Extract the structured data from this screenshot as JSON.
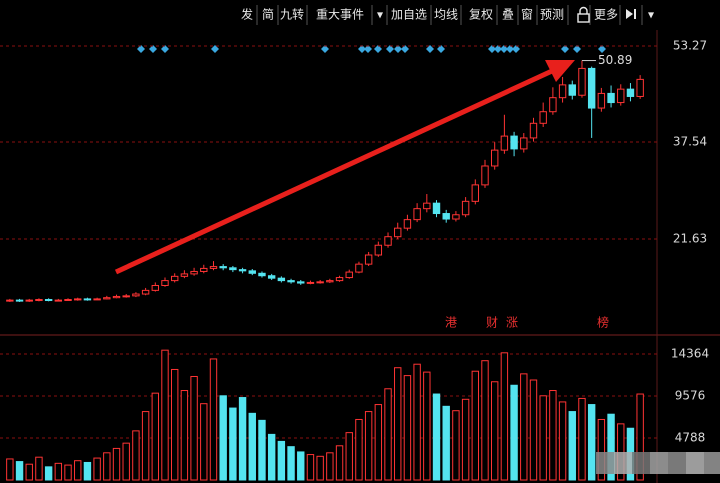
{
  "toolbar": [
    "发",
    "简",
    "九转",
    "重大事件",
    "▾",
    "加自选",
    "均线",
    "复权",
    "叠",
    "窗",
    "预测",
    "更多",
    "▾"
  ],
  "chart_data": [
    {
      "type": "candlestick",
      "open": [
        11.5,
        11.6,
        11.5,
        11.6,
        11.7,
        11.6,
        11.6,
        11.7,
        11.8,
        11.7,
        11.8,
        12.0,
        12.2,
        12.3,
        12.6,
        13.2,
        14.0,
        14.8,
        15.5,
        15.9,
        16.3,
        16.8,
        17.1,
        16.9,
        16.6,
        16.4,
        16.0,
        15.6,
        15.2,
        14.8,
        14.6,
        14.4,
        14.5,
        14.6,
        14.8,
        15.3,
        16.2,
        17.5,
        19.0,
        20.6,
        22.0,
        23.4,
        24.8,
        26.6,
        27.5,
        25.8,
        24.9,
        25.6,
        27.8,
        30.5,
        33.6,
        36.2,
        38.5,
        36.4,
        38.2,
        40.6,
        42.5,
        44.8,
        46.9,
        45.2,
        49.6,
        43.1,
        45.5,
        44.0,
        46.2,
        45.0
      ],
      "high": [
        11.8,
        11.8,
        11.8,
        11.9,
        11.9,
        11.8,
        11.9,
        12.0,
        12.0,
        12.0,
        12.3,
        12.5,
        12.6,
        12.9,
        13.6,
        14.5,
        15.3,
        16.0,
        16.5,
        16.9,
        17.4,
        18.0,
        17.5,
        17.2,
        16.9,
        16.7,
        16.3,
        15.9,
        15.5,
        15.1,
        14.9,
        14.8,
        14.9,
        15.1,
        15.6,
        16.6,
        17.9,
        19.5,
        21.2,
        22.7,
        24.3,
        25.6,
        27.5,
        29.0,
        28.0,
        26.4,
        26.2,
        28.5,
        31.4,
        34.6,
        37.5,
        42.0,
        39.2,
        39.0,
        41.5,
        44.0,
        46.5,
        48.2,
        47.6,
        50.89,
        49.9,
        46.4,
        46.8,
        47.0,
        47.2,
        48.5
      ],
      "low": [
        11.3,
        11.3,
        11.3,
        11.4,
        11.4,
        11.4,
        11.5,
        11.5,
        11.5,
        11.6,
        11.7,
        11.9,
        12.0,
        12.1,
        12.4,
        13.0,
        13.8,
        14.5,
        15.2,
        15.6,
        16.0,
        16.5,
        16.5,
        16.2,
        16.0,
        15.7,
        15.3,
        14.9,
        14.5,
        14.3,
        14.1,
        14.2,
        14.3,
        14.4,
        14.6,
        15.1,
        16.0,
        17.2,
        18.7,
        20.2,
        21.6,
        23.0,
        24.4,
        26.0,
        25.2,
        24.3,
        24.5,
        25.2,
        27.3,
        30.0,
        33.0,
        35.6,
        35.2,
        35.8,
        37.6,
        40.0,
        42.0,
        44.0,
        44.5,
        44.8,
        38.2,
        42.5,
        43.2,
        43.5,
        44.2,
        44.6
      ],
      "close": [
        11.6,
        11.5,
        11.6,
        11.7,
        11.6,
        11.6,
        11.7,
        11.8,
        11.7,
        11.8,
        12.0,
        12.2,
        12.3,
        12.6,
        13.2,
        14.0,
        14.8,
        15.5,
        15.9,
        16.3,
        16.8,
        17.1,
        16.9,
        16.6,
        16.4,
        16.0,
        15.6,
        15.2,
        14.8,
        14.6,
        14.4,
        14.5,
        14.6,
        14.8,
        15.3,
        16.2,
        17.5,
        19.0,
        20.6,
        22.0,
        23.4,
        24.8,
        26.6,
        27.5,
        25.8,
        24.9,
        25.6,
        27.8,
        30.5,
        33.6,
        36.2,
        38.5,
        36.4,
        38.2,
        40.6,
        42.5,
        44.8,
        46.9,
        45.2,
        49.6,
        43.1,
        45.5,
        44.0,
        46.2,
        45.0,
        47.8
      ],
      "up_color": "#ff3434",
      "down_color": "#54e4f0",
      "ylim": [
        6.7,
        55.9
      ],
      "yticks": [
        21.63,
        37.54,
        53.27
      ],
      "grid": true,
      "annotations": [
        "港",
        "财",
        "涨",
        "榜"
      ]
    },
    {
      "type": "bar",
      "values": [
        2400,
        2100,
        1800,
        2600,
        1500,
        1900,
        1700,
        2200,
        2000,
        2500,
        3100,
        3600,
        4200,
        5600,
        7800,
        9900,
        14800,
        12600,
        10200,
        11800,
        8700,
        13800,
        9600,
        8200,
        9400,
        7600,
        6800,
        5200,
        4400,
        3800,
        3200,
        2900,
        2700,
        3100,
        3900,
        5400,
        6900,
        7800,
        8600,
        10400,
        12800,
        11900,
        13200,
        12300,
        9800,
        8400,
        7900,
        9200,
        12400,
        13600,
        11200,
        14500,
        10800,
        12100,
        11400,
        9600,
        10200,
        8900,
        7800,
        9300,
        8600,
        6900,
        7500,
        6400,
        5900,
        9800
      ],
      "ylim": [
        0,
        15960
      ],
      "yticks": [
        4788,
        9576,
        14364
      ],
      "grid": true
    }
  ]
}
